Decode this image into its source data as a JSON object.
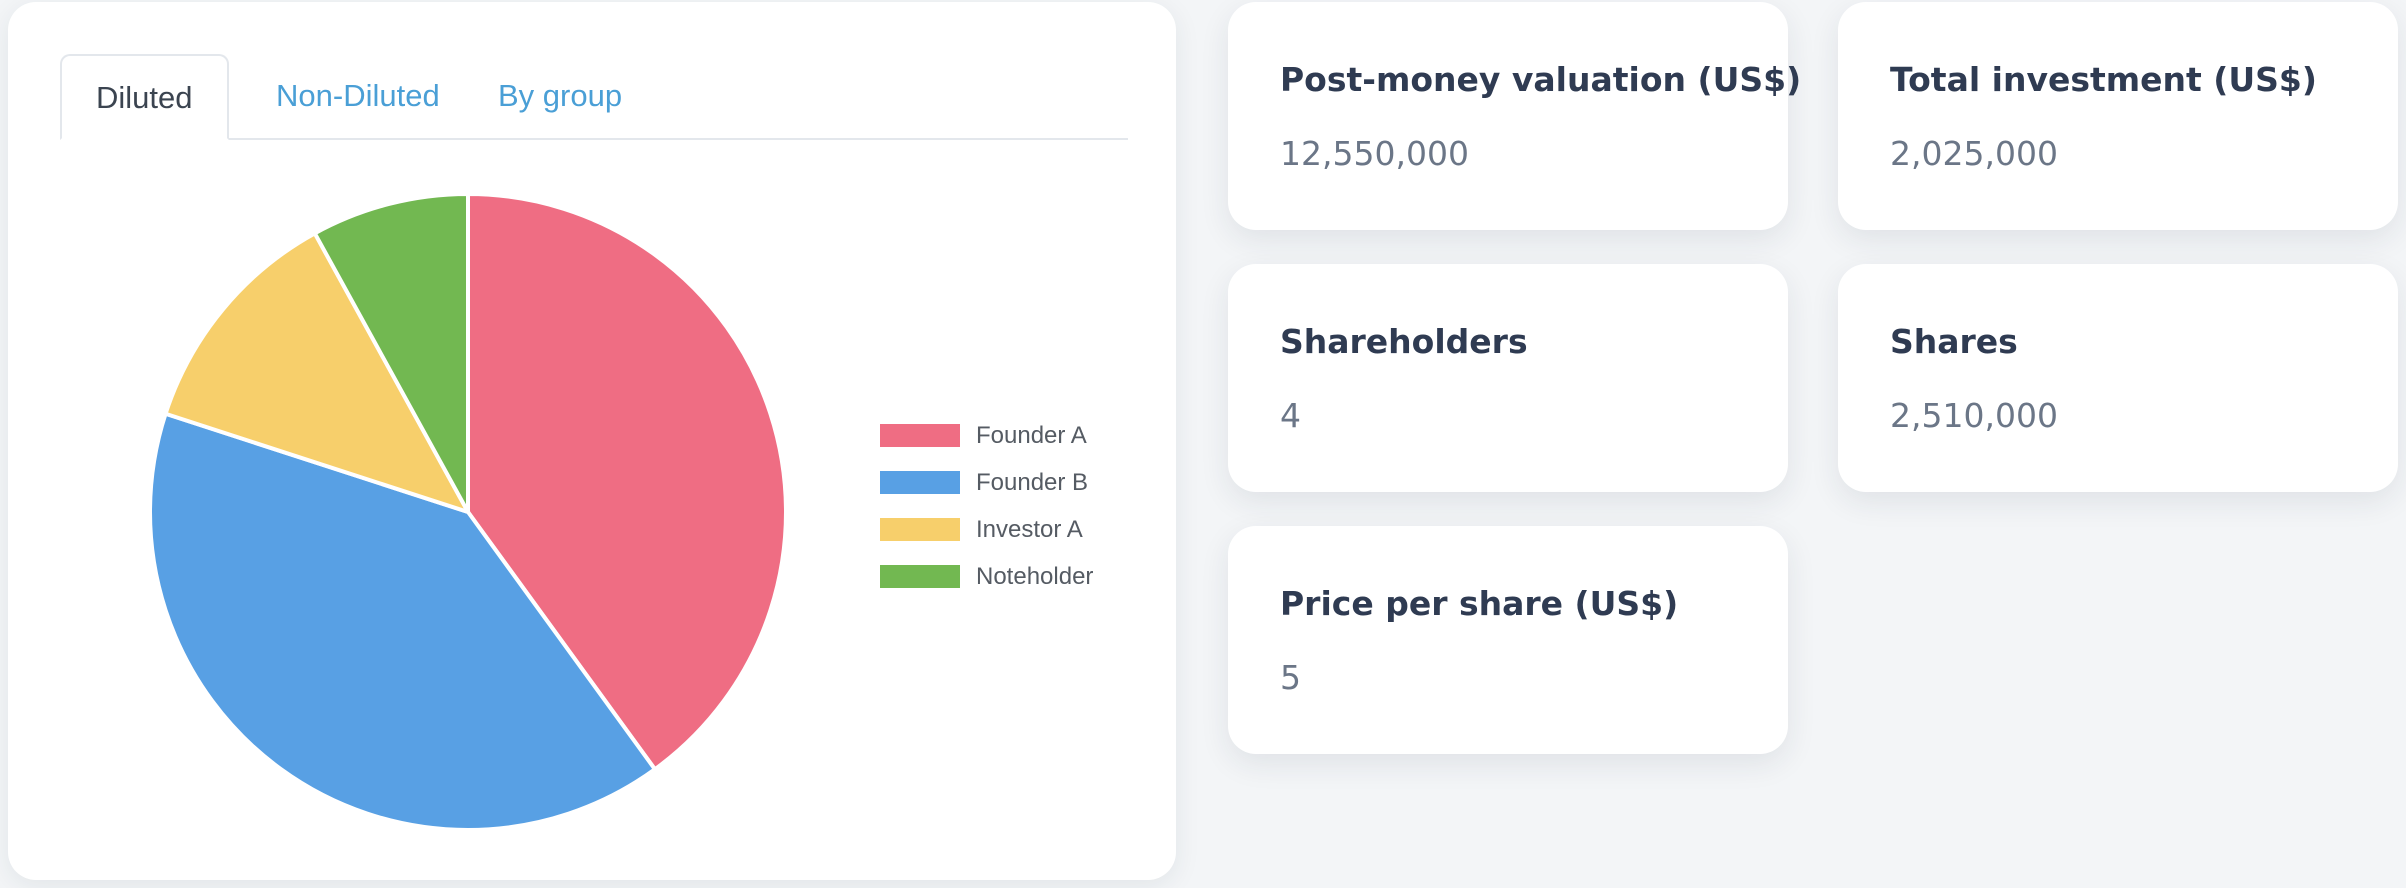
{
  "tabs": [
    {
      "label": "Diluted",
      "active": true
    },
    {
      "label": "Non-Diluted",
      "active": false
    },
    {
      "label": "By group",
      "active": false
    }
  ],
  "chart_data": {
    "type": "pie",
    "categories": [
      "Founder A",
      "Founder B",
      "Investor A",
      "Noteholder"
    ],
    "values": [
      40,
      40,
      12,
      8
    ],
    "colors": [
      "#ef6d83",
      "#58a0e4",
      "#f7cf6b",
      "#72b851"
    ],
    "legend_position": "right"
  },
  "stats": {
    "post_money": {
      "label": "Post-money valuation (US$)",
      "value": "12,550,000"
    },
    "total_investment": {
      "label": "Total investment (US$)",
      "value": "2,025,000"
    },
    "shareholders": {
      "label": "Shareholders",
      "value": "4"
    },
    "shares": {
      "label": "Shares",
      "value": "2,510,000"
    },
    "price_per_share": {
      "label": "Price per share (US$)",
      "value": "5"
    }
  }
}
